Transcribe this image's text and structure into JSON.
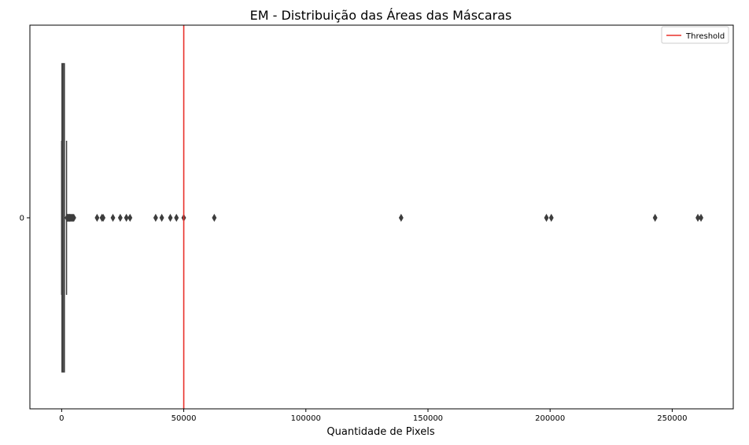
{
  "chart_data": {
    "type": "boxplot",
    "orientation": "horizontal",
    "title": "EM - Distribuição das Áreas das Máscaras",
    "xlabel": "Quantidade de Pixels",
    "ylabel": "",
    "xlim": [
      -13000,
      275000
    ],
    "x_ticks": [
      0,
      50000,
      100000,
      150000,
      200000,
      250000
    ],
    "y_categories": [
      "0"
    ],
    "box": {
      "category": "0",
      "whisker_low": 0,
      "q1": 150,
      "median": 300,
      "q3": 900,
      "whisker_high": 2000,
      "outliers": [
        2200,
        2400,
        2600,
        2800,
        3000,
        3200,
        3400,
        3600,
        3800,
        4100,
        4400,
        4700,
        5000,
        14500,
        16500,
        17000,
        21000,
        24000,
        26500,
        28000,
        38500,
        41000,
        44500,
        47000,
        50000,
        62500,
        139000,
        198500,
        200500,
        243000,
        260500,
        261800
      ]
    },
    "threshold": {
      "label": "Threshold",
      "value": 50000,
      "color": "#e8302a"
    },
    "box_color": "#3d3d3d",
    "legend_position": "top-right",
    "grid": false
  }
}
